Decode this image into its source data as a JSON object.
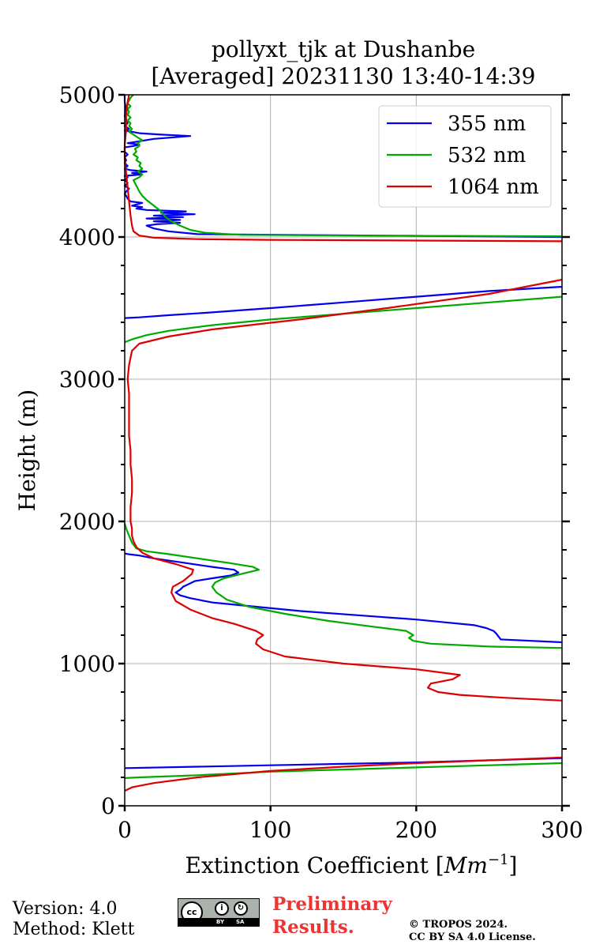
{
  "chart_data": {
    "type": "line",
    "title": "pollyxt_tjk at Dushanbe",
    "subtitle": "[Averaged] 20231130 13:40-14:39",
    "xlabel_main": "Extinction Coefficient [",
    "xlabel_unit": "Mm",
    "xlabel_exp": "−1",
    "xlabel_end": "]",
    "ylabel": "Height (m)",
    "xlim": [
      0,
      300
    ],
    "ylim": [
      0,
      5000
    ],
    "xticks": [
      "0",
      "100",
      "200",
      "300"
    ],
    "yticks": [
      "0",
      "1000",
      "2000",
      "3000",
      "4000",
      "5000"
    ],
    "grid": true,
    "legend_position": "top-right",
    "series": [
      {
        "name": "355 nm",
        "color": "#0000ee",
        "points": [
          [
            300,
            1150
          ],
          [
            258,
            1170
          ],
          [
            255,
            1210
          ],
          [
            253,
            1230
          ],
          [
            248,
            1250
          ],
          [
            240,
            1270
          ],
          [
            220,
            1290
          ],
          [
            200,
            1310
          ],
          [
            160,
            1340
          ],
          [
            120,
            1370
          ],
          [
            90,
            1400
          ],
          [
            60,
            1430
          ],
          [
            45,
            1460
          ],
          [
            38,
            1480
          ],
          [
            35,
            1500
          ],
          [
            38,
            1520
          ],
          [
            40,
            1540
          ],
          [
            44,
            1560
          ],
          [
            48,
            1580
          ],
          [
            60,
            1600
          ],
          [
            73,
            1620
          ],
          [
            78,
            1640
          ],
          [
            75,
            1660
          ],
          [
            60,
            1680
          ],
          [
            40,
            1710
          ],
          [
            20,
            1740
          ],
          [
            10,
            1760
          ],
          [
            2,
            1770
          ],
          [
            0,
            1775
          ]
        ]
      },
      {
        "name": "355 nm",
        "color": "#0000ee",
        "points": [
          [
            300,
            335
          ],
          [
            250,
            320
          ],
          [
            200,
            305
          ],
          [
            150,
            295
          ],
          [
            100,
            285
          ],
          [
            50,
            275
          ],
          [
            0,
            265
          ]
        ]
      },
      {
        "name": "355 nm",
        "color": "#0000ee",
        "points": [
          [
            300,
            3650
          ],
          [
            250,
            3620
          ],
          [
            200,
            3580
          ],
          [
            150,
            3540
          ],
          [
            100,
            3500
          ],
          [
            60,
            3470
          ],
          [
            30,
            3450
          ],
          [
            10,
            3435
          ],
          [
            0,
            3430
          ]
        ]
      },
      {
        "name": "355 nm",
        "color": "#0000ee",
        "points": [
          [
            300,
            4000
          ],
          [
            50,
            4020
          ],
          [
            30,
            4040
          ],
          [
            20,
            4060
          ],
          [
            15,
            4080
          ],
          [
            22,
            4090
          ],
          [
            38,
            4100
          ],
          [
            20,
            4110
          ],
          [
            38,
            4120
          ],
          [
            15,
            4130
          ],
          [
            40,
            4140
          ],
          [
            20,
            4150
          ],
          [
            48,
            4160
          ],
          [
            25,
            4170
          ],
          [
            42,
            4180
          ],
          [
            15,
            4190
          ],
          [
            8,
            4200
          ],
          [
            12,
            4210
          ],
          [
            5,
            4220
          ],
          [
            12,
            4240
          ],
          [
            4,
            4250
          ],
          [
            2,
            4270
          ],
          [
            1,
            4290
          ],
          [
            0,
            4300
          ],
          [
            1,
            4320
          ],
          [
            3,
            4340
          ],
          [
            0,
            4360
          ],
          [
            2,
            4380
          ],
          [
            0,
            4400
          ],
          [
            2,
            4420
          ],
          [
            0,
            4430
          ],
          [
            12,
            4440
          ],
          [
            5,
            4450
          ],
          [
            15,
            4460
          ],
          [
            4,
            4470
          ],
          [
            0,
            4480
          ],
          [
            2,
            4500
          ],
          [
            0,
            4520
          ],
          [
            1,
            4540
          ],
          [
            0,
            4560
          ],
          [
            2,
            4580
          ],
          [
            0,
            4600
          ],
          [
            0,
            4630
          ],
          [
            6,
            4640
          ],
          [
            10,
            4650
          ],
          [
            2,
            4660
          ],
          [
            8,
            4670
          ],
          [
            20,
            4690
          ],
          [
            45,
            4710
          ],
          [
            25,
            4720
          ],
          [
            10,
            4730
          ],
          [
            5,
            4740
          ],
          [
            0,
            4750
          ],
          [
            3,
            4760
          ],
          [
            0,
            4780
          ],
          [
            2,
            4800
          ],
          [
            0,
            4850
          ],
          [
            1,
            4900
          ],
          [
            0,
            4950
          ],
          [
            0,
            5000
          ]
        ]
      },
      {
        "name": "532 nm",
        "color": "#00aa00",
        "points": [
          [
            300,
            1110
          ],
          [
            250,
            1120
          ],
          [
            210,
            1140
          ],
          [
            198,
            1160
          ],
          [
            195,
            1180
          ],
          [
            198,
            1200
          ],
          [
            193,
            1230
          ],
          [
            170,
            1260
          ],
          [
            140,
            1300
          ],
          [
            110,
            1350
          ],
          [
            85,
            1400
          ],
          [
            70,
            1450
          ],
          [
            63,
            1500
          ],
          [
            60,
            1540
          ],
          [
            62,
            1570
          ],
          [
            68,
            1600
          ],
          [
            80,
            1630
          ],
          [
            92,
            1660
          ],
          [
            88,
            1680
          ],
          [
            70,
            1710
          ],
          [
            50,
            1740
          ],
          [
            30,
            1770
          ],
          [
            15,
            1790
          ],
          [
            8,
            1810
          ],
          [
            5,
            1850
          ],
          [
            3,
            1900
          ],
          [
            1,
            1950
          ],
          [
            0,
            1985
          ]
        ]
      },
      {
        "name": "532 nm",
        "color": "#00aa00",
        "points": [
          [
            300,
            300
          ],
          [
            250,
            285
          ],
          [
            200,
            270
          ],
          [
            150,
            255
          ],
          [
            100,
            240
          ],
          [
            50,
            215
          ],
          [
            10,
            200
          ],
          [
            0,
            195
          ]
        ]
      },
      {
        "name": "532 nm",
        "color": "#00aa00",
        "points": [
          [
            300,
            3580
          ],
          [
            250,
            3540
          ],
          [
            200,
            3500
          ],
          [
            150,
            3460
          ],
          [
            100,
            3420
          ],
          [
            60,
            3380
          ],
          [
            30,
            3340
          ],
          [
            15,
            3310
          ],
          [
            5,
            3280
          ],
          [
            0,
            3260
          ]
        ]
      },
      {
        "name": "532 nm",
        "color": "#00aa00",
        "points": [
          [
            300,
            4005
          ],
          [
            150,
            4010
          ],
          [
            80,
            4015
          ],
          [
            55,
            4030
          ],
          [
            45,
            4050
          ],
          [
            38,
            4080
          ],
          [
            32,
            4110
          ],
          [
            28,
            4140
          ],
          [
            25,
            4180
          ],
          [
            20,
            4220
          ],
          [
            15,
            4260
          ],
          [
            12,
            4290
          ],
          [
            10,
            4320
          ],
          [
            8,
            4360
          ],
          [
            6,
            4400
          ],
          [
            10,
            4420
          ],
          [
            12,
            4440
          ],
          [
            9,
            4460
          ],
          [
            12,
            4480
          ],
          [
            10,
            4500
          ],
          [
            11,
            4520
          ],
          [
            8,
            4540
          ],
          [
            9,
            4560
          ],
          [
            6,
            4580
          ],
          [
            8,
            4600
          ],
          [
            7,
            4620
          ],
          [
            10,
            4640
          ],
          [
            9,
            4660
          ],
          [
            12,
            4680
          ],
          [
            9,
            4700
          ],
          [
            6,
            4720
          ],
          [
            3,
            4740
          ],
          [
            5,
            4760
          ],
          [
            3,
            4780
          ],
          [
            4,
            4800
          ],
          [
            2,
            4820
          ],
          [
            4,
            4840
          ],
          [
            2,
            4860
          ],
          [
            3,
            4880
          ],
          [
            2,
            4900
          ],
          [
            4,
            4920
          ],
          [
            2,
            4940
          ],
          [
            3,
            4960
          ],
          [
            4,
            4980
          ],
          [
            6,
            5000
          ]
        ]
      },
      {
        "name": "1064 nm",
        "color": "#dd0000",
        "points": [
          [
            300,
            740
          ],
          [
            260,
            760
          ],
          [
            230,
            780
          ],
          [
            215,
            800
          ],
          [
            208,
            830
          ],
          [
            210,
            860
          ],
          [
            225,
            890
          ],
          [
            230,
            920
          ],
          [
            200,
            960
          ],
          [
            150,
            1000
          ],
          [
            110,
            1050
          ],
          [
            95,
            1100
          ],
          [
            90,
            1140
          ],
          [
            91,
            1170
          ],
          [
            95,
            1200
          ],
          [
            90,
            1230
          ],
          [
            75,
            1280
          ],
          [
            60,
            1320
          ],
          [
            45,
            1380
          ],
          [
            35,
            1440
          ],
          [
            32,
            1500
          ],
          [
            33,
            1540
          ],
          [
            40,
            1580
          ],
          [
            46,
            1630
          ],
          [
            47,
            1660
          ],
          [
            35,
            1700
          ],
          [
            20,
            1740
          ],
          [
            12,
            1780
          ],
          [
            8,
            1820
          ],
          [
            6,
            1860
          ],
          [
            5,
            1900
          ],
          [
            5,
            1950
          ],
          [
            4,
            2000
          ],
          [
            4,
            2100
          ],
          [
            5,
            2200
          ],
          [
            5,
            2300
          ],
          [
            4,
            2400
          ],
          [
            4,
            2500
          ],
          [
            3,
            2600
          ],
          [
            3,
            2700
          ],
          [
            3,
            2800
          ],
          [
            3,
            2900
          ],
          [
            2,
            3000
          ],
          [
            3,
            3100
          ],
          [
            5,
            3200
          ],
          [
            10,
            3250
          ],
          [
            30,
            3300
          ],
          [
            60,
            3350
          ],
          [
            120,
            3420
          ],
          [
            180,
            3500
          ],
          [
            250,
            3600
          ],
          [
            300,
            3700
          ]
        ]
      },
      {
        "name": "1064 nm",
        "color": "#dd0000",
        "points": [
          [
            300,
            340
          ],
          [
            250,
            320
          ],
          [
            200,
            300
          ],
          [
            150,
            275
          ],
          [
            100,
            245
          ],
          [
            50,
            200
          ],
          [
            20,
            160
          ],
          [
            5,
            130
          ],
          [
            0,
            105
          ]
        ]
      },
      {
        "name": "1064 nm",
        "color": "#dd0000",
        "points": [
          [
            300,
            3970
          ],
          [
            200,
            3975
          ],
          [
            100,
            3980
          ],
          [
            50,
            3985
          ],
          [
            20,
            3995
          ],
          [
            10,
            4010
          ],
          [
            6,
            4040
          ],
          [
            5,
            4080
          ],
          [
            4,
            4150
          ],
          [
            3,
            4250
          ],
          [
            2,
            4350
          ],
          [
            1,
            4450
          ],
          [
            0,
            4550
          ],
          [
            0,
            4650
          ],
          [
            1,
            4750
          ],
          [
            1,
            4850
          ],
          [
            2,
            4950
          ],
          [
            3,
            5000
          ]
        ]
      }
    ]
  },
  "legend": [
    {
      "label": "355 nm",
      "color": "#0000ee"
    },
    {
      "label": "532 nm",
      "color": "#00aa00"
    },
    {
      "label": "1064 nm",
      "color": "#dd0000"
    }
  ],
  "footer": {
    "version": "Version: 4.0",
    "method": "Method: Klett",
    "license_badge": {
      "cc": "cc",
      "by": "BY",
      "sa": "SA"
    },
    "preliminary_line1": "Preliminary",
    "preliminary_line2": "Results.",
    "copyright_line1": "© TROPOS 2024.",
    "copyright_line2": "CC BY SA 4.0 License."
  }
}
